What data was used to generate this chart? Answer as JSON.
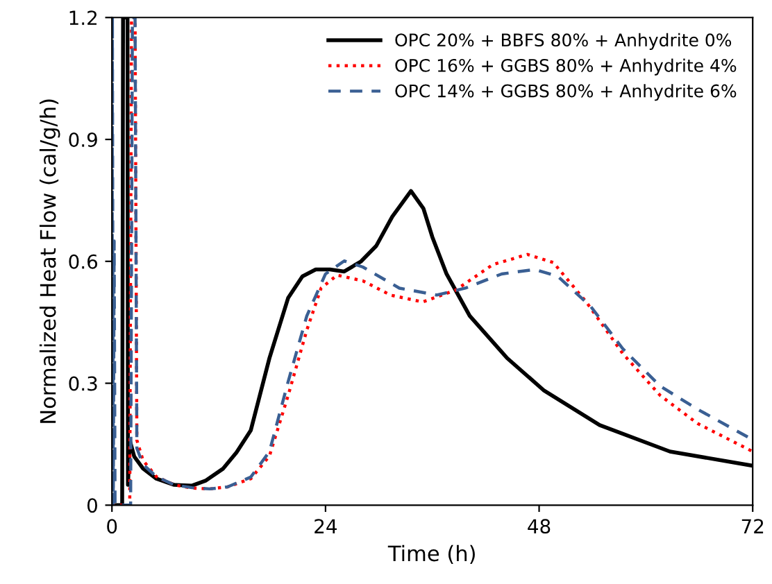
{
  "chart_data": {
    "type": "line",
    "xlabel": "Time (h)",
    "ylabel": "Normalized Heat Flow (cal/g/h)",
    "xlim": [
      0,
      72
    ],
    "xticks": [
      0,
      24,
      48,
      72
    ],
    "ylim": [
      0,
      1.2
    ],
    "yticks": [
      0,
      0.3,
      0.6,
      0.9,
      1.2
    ],
    "grid": false,
    "legend": "top right",
    "marker": "none",
    "series": [
      {
        "name": "OPC 20% + BBFS 80% + Anhydrite 0%",
        "color": "#000000",
        "line_style": "solid",
        "x": [
          0,
          1.15,
          1.25,
          1.75,
          1.8,
          2.0,
          2.5,
          3.5,
          5,
          7,
          9,
          10.5,
          12.5,
          14,
          15.6,
          17.7,
          19.8,
          21.4,
          22.9,
          24.5,
          26.1,
          28,
          29.7,
          31.5,
          33.6,
          35,
          36,
          37.6,
          40.2,
          44.4,
          48.5,
          54.8,
          62.7,
          72
        ],
        "values": [
          0,
          0,
          1.2,
          1.2,
          0.05,
          0.16,
          0.12,
          0.09,
          0.065,
          0.05,
          0.048,
          0.06,
          0.09,
          0.13,
          0.184,
          0.362,
          0.51,
          0.563,
          0.58,
          0.58,
          0.575,
          0.6,
          0.638,
          0.71,
          0.773,
          0.73,
          0.66,
          0.569,
          0.466,
          0.362,
          0.283,
          0.197,
          0.132,
          0.097
        ]
      },
      {
        "name": "OPC 16% + GGBS 80% + Anhydrite 4%",
        "color": "#ff0000",
        "line_style": "dotted",
        "x": [
          0,
          2.0,
          2.2,
          2.6,
          2.8,
          3.5,
          5,
          7,
          9,
          11,
          13,
          15.6,
          17.7,
          19.8,
          21.9,
          23.5,
          25.3,
          28.2,
          31.3,
          34.9,
          38.6,
          42.8,
          46.7,
          49.6,
          53.3,
          57.4,
          61.6,
          65.8,
          72
        ],
        "values": [
          0,
          0,
          1.2,
          1.2,
          0.16,
          0.11,
          0.07,
          0.05,
          0.042,
          0.04,
          0.045,
          0.065,
          0.121,
          0.27,
          0.431,
          0.534,
          0.566,
          0.552,
          0.517,
          0.5,
          0.529,
          0.592,
          0.617,
          0.597,
          0.5,
          0.373,
          0.27,
          0.201,
          0.132
        ]
      },
      {
        "name": "OPC 14% + GGBS 80% + Anhydrite 6%",
        "color": "#3a5f93",
        "line_style": "dashed",
        "x": [
          0,
          0.05,
          0.15,
          0.25,
          0.35,
          2.1,
          2.3,
          2.6,
          2.8,
          3.5,
          5,
          7,
          9,
          11,
          13,
          15.6,
          17.7,
          19.8,
          21.9,
          24,
          26.1,
          28.2,
          32.3,
          36.5,
          39.7,
          43.8,
          47.5,
          50.1,
          53.8,
          57.4,
          61.6,
          65.8,
          72
        ],
        "values": [
          0,
          1.2,
          0,
          0.65,
          0,
          0,
          1.2,
          1.2,
          0.14,
          0.1,
          0.07,
          0.05,
          0.043,
          0.04,
          0.045,
          0.069,
          0.132,
          0.304,
          0.466,
          0.569,
          0.601,
          0.586,
          0.534,
          0.517,
          0.534,
          0.569,
          0.58,
          0.563,
          0.489,
          0.385,
          0.293,
          0.236,
          0.161
        ]
      }
    ]
  }
}
